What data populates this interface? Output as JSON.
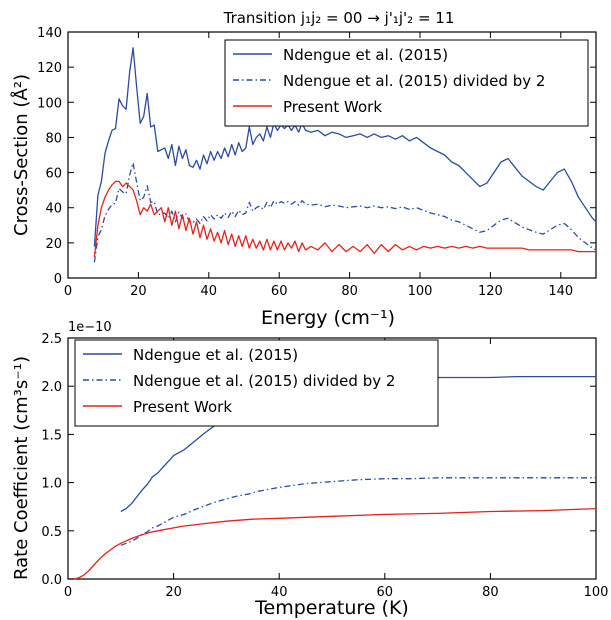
{
  "chart_data": [
    {
      "type": "line",
      "title": "Transition j₁j₂ = 00 → j'₁j'₂ = 11",
      "xlabel": "Energy (cm⁻¹)",
      "ylabel": "Cross-Section (Å²)",
      "xlim": [
        0,
        150
      ],
      "ylim": [
        0,
        140
      ],
      "xticks": [
        0,
        20,
        40,
        60,
        80,
        100,
        120,
        140
      ],
      "yticks": [
        0,
        20,
        40,
        60,
        80,
        100,
        120,
        140
      ],
      "grid": false,
      "legend_position": "top-right",
      "series": [
        {
          "name": "Ndengue et al. (2015)",
          "color": "#2b4c9f",
          "style": "solid",
          "x": [
            7.5,
            8.5,
            9.5,
            10.5,
            11.5,
            12.5,
            13.5,
            14.5,
            15.5,
            16.5,
            17.5,
            18.5,
            19.5,
            20.5,
            21.5,
            22.5,
            23.5,
            24.5,
            25.5,
            26.5,
            27.5,
            28.5,
            29.5,
            30.5,
            31.5,
            32.5,
            33.5,
            34.5,
            35.5,
            36.5,
            37.5,
            38.5,
            39.5,
            40.5,
            41.5,
            42.5,
            43.5,
            44.5,
            45.5,
            46.5,
            47.5,
            48.5,
            49.5,
            50.5,
            51.5,
            52.5,
            53.5,
            54.5,
            55.5,
            56.5,
            57.5,
            58.5,
            59.5,
            60.5,
            61.5,
            62.5,
            63.5,
            64.5,
            65.5,
            66.5,
            67.5,
            69,
            71,
            73,
            75,
            77,
            79,
            81,
            83,
            85,
            87,
            89,
            91,
            93,
            95,
            97,
            99,
            101,
            103,
            105,
            107,
            109,
            111,
            113,
            115,
            117,
            119,
            121,
            123,
            125,
            127,
            129,
            131,
            133,
            135,
            137,
            139,
            141,
            143,
            145,
            147,
            149,
            150
          ],
          "y": [
            18,
            47,
            55,
            71,
            78,
            84,
            85,
            102,
            98,
            96,
            117,
            131,
            109,
            88,
            92,
            105,
            86,
            87,
            72,
            73,
            74,
            68,
            76,
            64,
            75,
            68,
            73,
            64,
            63,
            67,
            62,
            70,
            65,
            72,
            67,
            72,
            68,
            74,
            69,
            76,
            70,
            77,
            72,
            74,
            86,
            76,
            80,
            82,
            78,
            86,
            80,
            88,
            84,
            87,
            85,
            87,
            84,
            87,
            83,
            88,
            84,
            83,
            84,
            81,
            83,
            82,
            80,
            81,
            82,
            80,
            82,
            80,
            81,
            79,
            81,
            78,
            80,
            77,
            74,
            72,
            70,
            66,
            64,
            60,
            56,
            52,
            54,
            60,
            66,
            68,
            63,
            58,
            55,
            52,
            50,
            55,
            60,
            62,
            55,
            46,
            40,
            34,
            32
          ]
        },
        {
          "name": "Ndengue et al. (2015) divided by 2",
          "color": "#2b4c9f",
          "style": "dashdot",
          "x": [
            7.5,
            8.5,
            9.5,
            10.5,
            11.5,
            12.5,
            13.5,
            14.5,
            15.5,
            16.5,
            17.5,
            18.5,
            19.5,
            20.5,
            21.5,
            22.5,
            23.5,
            24.5,
            25.5,
            26.5,
            27.5,
            28.5,
            29.5,
            30.5,
            31.5,
            32.5,
            33.5,
            34.5,
            35.5,
            36.5,
            37.5,
            38.5,
            39.5,
            40.5,
            41.5,
            42.5,
            43.5,
            44.5,
            45.5,
            46.5,
            47.5,
            48.5,
            49.5,
            50.5,
            51.5,
            52.5,
            53.5,
            54.5,
            55.5,
            56.5,
            57.5,
            58.5,
            59.5,
            60.5,
            61.5,
            62.5,
            63.5,
            64.5,
            65.5,
            66.5,
            67.5,
            69,
            71,
            73,
            75,
            77,
            79,
            81,
            83,
            85,
            87,
            89,
            91,
            93,
            95,
            97,
            99,
            101,
            103,
            105,
            107,
            109,
            111,
            113,
            115,
            117,
            119,
            121,
            123,
            125,
            127,
            129,
            131,
            133,
            135,
            137,
            139,
            141,
            143,
            145,
            147,
            149,
            150
          ],
          "y": [
            9,
            23.5,
            27.5,
            35.5,
            39,
            42,
            42.5,
            51,
            49,
            48,
            58.5,
            65.5,
            54.5,
            44,
            46,
            52.5,
            43,
            43.5,
            36,
            36.5,
            37,
            34,
            38,
            32,
            37.5,
            34,
            36.5,
            32,
            31.5,
            33.5,
            31,
            35,
            32.5,
            36,
            33.5,
            36,
            34,
            37,
            34.5,
            38,
            35,
            38.5,
            36,
            37,
            43,
            38,
            40,
            41,
            39,
            43,
            40,
            44,
            42,
            43.5,
            42.5,
            43.5,
            42,
            43.5,
            41.5,
            44,
            42,
            41.5,
            42,
            40.5,
            41.5,
            41,
            40,
            40.5,
            41,
            40,
            41,
            40,
            40.5,
            39.5,
            40.5,
            39,
            40,
            38.5,
            37,
            36,
            35,
            33,
            32,
            30,
            28,
            26,
            27,
            30,
            33,
            34,
            31.5,
            29,
            27.5,
            26,
            25,
            27.5,
            30,
            31,
            27.5,
            23,
            20,
            17,
            16
          ]
        },
        {
          "name": "Present Work",
          "color": "#e8211b",
          "style": "solid",
          "x": [
            7.5,
            8.5,
            9.5,
            10.5,
            11.5,
            12.5,
            13.5,
            14.5,
            15.5,
            16.5,
            17.5,
            18.5,
            19.5,
            20.5,
            21.5,
            22.5,
            23.5,
            24.5,
            25.5,
            26.5,
            27.5,
            28.5,
            29.5,
            30.5,
            31.5,
            32.5,
            33.5,
            34.5,
            35.5,
            36.5,
            37.5,
            38.5,
            39.5,
            40.5,
            41.5,
            42.5,
            43.5,
            44.5,
            45.5,
            46.5,
            47.5,
            48.5,
            49.5,
            50.5,
            51.5,
            52.5,
            53.5,
            54.5,
            55.5,
            56.5,
            57.5,
            58.5,
            59.5,
            60.5,
            61.5,
            62.5,
            63.5,
            64.5,
            65.5,
            66.5,
            67.5,
            69,
            71,
            73,
            75,
            77,
            79,
            81,
            83,
            85,
            87,
            89,
            91,
            93,
            95,
            97,
            99,
            101,
            103,
            105,
            107,
            109,
            111,
            113,
            115,
            117,
            119,
            121,
            123,
            125,
            127,
            129,
            131,
            133,
            135,
            137,
            139,
            141,
            143,
            145,
            147,
            149,
            150
          ],
          "y": [
            12,
            30,
            40,
            46,
            50,
            53,
            55,
            55,
            52,
            54,
            52,
            50,
            44,
            36,
            40,
            38,
            42,
            36,
            38,
            40,
            32,
            40,
            30,
            38,
            28,
            36,
            27,
            34,
            25,
            32,
            23,
            30,
            22,
            28,
            21,
            26,
            20,
            27,
            19,
            25,
            18,
            24,
            18,
            24,
            17,
            22,
            17,
            21,
            16,
            22,
            16,
            21,
            16,
            21,
            16,
            20,
            17,
            21,
            15,
            20,
            16,
            18,
            16,
            20,
            15,
            19,
            15,
            18,
            15,
            19,
            14,
            19,
            15,
            19,
            16,
            18,
            16,
            18,
            17,
            18,
            17,
            18,
            17,
            18,
            17,
            18,
            17,
            17,
            17,
            17,
            17,
            17,
            16,
            16,
            16,
            16,
            16,
            16,
            16,
            15,
            15,
            15,
            15
          ]
        }
      ]
    },
    {
      "type": "line",
      "title": "",
      "xlabel": "Temperature (K)",
      "ylabel": "Rate Coefficient (cm³s⁻¹)",
      "scale_label": "1e−10",
      "xlim": [
        0,
        100
      ],
      "ylim": [
        0,
        2.5
      ],
      "xticks": [
        0,
        20,
        40,
        60,
        80,
        100
      ],
      "yticks": [
        0.0,
        0.5,
        1.0,
        1.5,
        2.0,
        2.5
      ],
      "grid": false,
      "legend_position": "top-left",
      "series": [
        {
          "name": "Ndengue et al. (2015)",
          "color": "#2b4c9f",
          "style": "solid",
          "x": [
            10,
            11,
            12,
            13,
            14,
            15,
            16,
            17,
            18,
            19,
            20,
            22,
            24,
            26,
            28,
            30,
            32,
            34,
            36,
            38,
            40,
            45,
            50,
            55,
            60,
            65,
            70,
            75,
            80,
            85,
            90,
            95,
            100
          ],
          "y": [
            0.7,
            0.73,
            0.78,
            0.85,
            0.92,
            0.98,
            1.06,
            1.1,
            1.16,
            1.22,
            1.28,
            1.34,
            1.43,
            1.52,
            1.6,
            1.66,
            1.72,
            1.77,
            1.82,
            1.86,
            1.9,
            1.97,
            2.02,
            2.05,
            2.07,
            2.08,
            2.09,
            2.09,
            2.09,
            2.1,
            2.1,
            2.1,
            2.1
          ]
        },
        {
          "name": "Ndengue et al. (2015) divided by 2",
          "color": "#2b4c9f",
          "style": "dashdot",
          "x": [
            10,
            11,
            12,
            13,
            14,
            15,
            16,
            17,
            18,
            19,
            20,
            22,
            24,
            26,
            28,
            30,
            32,
            34,
            36,
            38,
            40,
            45,
            50,
            55,
            60,
            65,
            70,
            75,
            80,
            85,
            90,
            95,
            100
          ],
          "y": [
            0.35,
            0.37,
            0.39,
            0.42,
            0.46,
            0.49,
            0.53,
            0.55,
            0.58,
            0.61,
            0.64,
            0.67,
            0.72,
            0.76,
            0.8,
            0.83,
            0.86,
            0.88,
            0.91,
            0.93,
            0.95,
            0.99,
            1.01,
            1.03,
            1.04,
            1.04,
            1.05,
            1.05,
            1.05,
            1.05,
            1.05,
            1.05,
            1.05
          ]
        },
        {
          "name": "Present Work",
          "color": "#e8211b",
          "style": "solid",
          "x": [
            0,
            1,
            2,
            3,
            4,
            5,
            6,
            7,
            8,
            9,
            10,
            12,
            14,
            16,
            18,
            20,
            22,
            25,
            30,
            35,
            40,
            45,
            50,
            60,
            70,
            80,
            90,
            100
          ],
          "y": [
            0.0,
            0.0,
            0.01,
            0.04,
            0.09,
            0.15,
            0.21,
            0.26,
            0.3,
            0.34,
            0.37,
            0.42,
            0.46,
            0.49,
            0.51,
            0.53,
            0.55,
            0.57,
            0.6,
            0.62,
            0.63,
            0.64,
            0.65,
            0.67,
            0.68,
            0.7,
            0.71,
            0.73
          ]
        }
      ]
    }
  ]
}
